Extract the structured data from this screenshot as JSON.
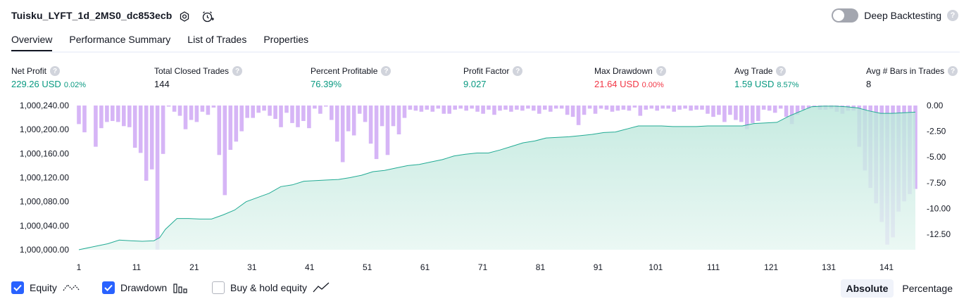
{
  "header": {
    "title": "Tuisku_LYFT_1d_2MS0_dc853ecb",
    "deep_backtesting_label": "Deep Backtesting",
    "help_glyph": "?"
  },
  "tabs": [
    "Overview",
    "Performance Summary",
    "List of Trades",
    "Properties"
  ],
  "metrics": [
    {
      "label": "Net Profit",
      "value": "229.26 USD",
      "sub": "0.02%",
      "color": "#089981"
    },
    {
      "label": "Total Closed Trades",
      "value": "144",
      "sub": "",
      "color": "#131722"
    },
    {
      "label": "Percent Profitable",
      "value": "76.39%",
      "sub": "",
      "color": "#089981"
    },
    {
      "label": "Profit Factor",
      "value": "9.027",
      "sub": "",
      "color": "#089981"
    },
    {
      "label": "Max Drawdown",
      "value": "21.64 USD",
      "sub": "0.00%",
      "color": "#f23645"
    },
    {
      "label": "Avg Trade",
      "value": "1.59 USD",
      "sub": "8.57%",
      "color": "#089981"
    },
    {
      "label": "Avg # Bars in Trades",
      "value": "8",
      "sub": "",
      "color": "#131722"
    }
  ],
  "legend": {
    "equity": "Equity",
    "drawdown": "Drawdown",
    "buy_hold": "Buy & hold equity"
  },
  "mode": {
    "absolute": "Absolute",
    "percentage": "Percentage"
  },
  "chart_data": {
    "type": "area",
    "left_axis": {
      "label": "Equity",
      "ticks": [
        "1,000,240.00",
        "1,000,200.00",
        "1,000,160.00",
        "1,000,120.00",
        "1,000,080.00",
        "1,000,040.00",
        "1,000,000.00"
      ],
      "range": [
        1000000,
        1000240
      ]
    },
    "right_axis": {
      "label": "Drawdown",
      "ticks": [
        "0.00",
        "-2.50",
        "-5.00",
        "-7.50",
        "-10.00",
        "-12.50"
      ],
      "range": [
        -14,
        0
      ]
    },
    "x_ticks": [
      "1",
      "11",
      "21",
      "31",
      "41",
      "51",
      "61",
      "71",
      "81",
      "91",
      "101",
      "111",
      "121",
      "131",
      "141"
    ],
    "equity": {
      "x": [
        1,
        4,
        6,
        8,
        10,
        12,
        14,
        15,
        16,
        18,
        20,
        22,
        24,
        26,
        28,
        30,
        32,
        34,
        36,
        38,
        40,
        42,
        44,
        46,
        48,
        50,
        52,
        54,
        56,
        58,
        60,
        62,
        64,
        66,
        68,
        70,
        72,
        74,
        76,
        78,
        80,
        82,
        84,
        86,
        88,
        90,
        92,
        94,
        96,
        98,
        100,
        102,
        104,
        106,
        108,
        110,
        112,
        114,
        116,
        118,
        120,
        122,
        124,
        126,
        128,
        130,
        132,
        134,
        136,
        138,
        140,
        142,
        144,
        146
      ],
      "y": [
        1000000,
        1000006,
        1000010,
        1000016,
        1000015,
        1000014,
        1000015,
        1000020,
        1000034,
        1000052,
        1000052,
        1000051,
        1000051,
        1000058,
        1000066,
        1000080,
        1000087,
        1000094,
        1000105,
        1000108,
        1000114,
        1000115,
        1000116,
        1000117,
        1000120,
        1000124,
        1000130,
        1000132,
        1000136,
        1000140,
        1000142,
        1000146,
        1000150,
        1000156,
        1000159,
        1000161,
        1000161,
        1000166,
        1000172,
        1000178,
        1000181,
        1000186,
        1000187,
        1000188,
        1000190,
        1000192,
        1000195,
        1000196,
        1000201,
        1000206,
        1000206,
        1000206,
        1000205,
        1000205,
        1000205,
        1000206,
        1000206,
        1000206,
        1000206,
        1000210,
        1000211,
        1000212,
        1000222,
        1000230,
        1000238,
        1000239,
        1000239,
        1000238,
        1000236,
        1000231,
        1000227,
        1000227,
        1000228,
        1000229
      ]
    },
    "drawdown": [
      -1.8,
      -2.6,
      0,
      -4.0,
      -2.2,
      -1.6,
      -1.5,
      -1.6,
      -2.0,
      -2.1,
      -4.1,
      -4.6,
      -7.3,
      -6.2,
      -14.0,
      -4.7,
      -0.1,
      -0.6,
      -1.0,
      -2.3,
      -1.4,
      -1.6,
      -0.6,
      -0.9,
      -0.2,
      -4.8,
      -8.7,
      -4.3,
      -3.5,
      -2.5,
      -1.2,
      -1.2,
      -0.7,
      -0.5,
      -1.0,
      -1.3,
      -2.1,
      -0.7,
      -1.7,
      -2.1,
      -1.5,
      -2.2,
      -0.3,
      -0.8,
      -0.1,
      -1.4,
      -3.5,
      -5.5,
      -2.5,
      -2.9,
      -0.8,
      -1.6,
      -3.7,
      -5.2,
      -2.0,
      -4.8,
      -2.0,
      -2.8,
      -1.2,
      -0.4,
      -0.5,
      -0.6,
      -0.4,
      -0.6,
      -0.3,
      -0.8,
      -0.8,
      -0.4,
      -0.3,
      -0.5,
      -0.3,
      -0.6,
      -0.8,
      -0.4,
      -0.9,
      -0.5,
      -0.4,
      -0.6,
      -0.4,
      -0.5,
      -0.3,
      -0.5,
      -0.8,
      -0.4,
      -0.6,
      -0.3,
      -0.3,
      -0.9,
      -1.1,
      -1.9,
      -0.9,
      -0.3,
      -0.8,
      -0.3,
      -0.4,
      -0.6,
      -0.5,
      -0.4,
      -0.5,
      -0.2,
      -1.0,
      -0.4,
      -0.3,
      -0.5,
      -0.3,
      -0.3,
      -0.6,
      -0.4,
      -0.3,
      -0.5,
      -0.4,
      -0.4,
      -0.8,
      -1.1,
      -0.9,
      -1.6,
      -0.9,
      -1.4,
      -1.6,
      -2.3,
      -1.7,
      -1.5,
      -0.4,
      -0.5,
      -0.7,
      -0.3,
      -1.1,
      -1.8,
      -0.9,
      -0.4,
      -0.3,
      -0.1,
      -0.4,
      -0.4,
      -0.3,
      -0.6,
      -0.8,
      -0.5,
      -0.5,
      -4.0,
      -6.3,
      -8.0,
      -9.5,
      -11.3,
      -13.5,
      -12.8,
      -10.3,
      -9.3,
      -8.6,
      -8.1
    ]
  }
}
